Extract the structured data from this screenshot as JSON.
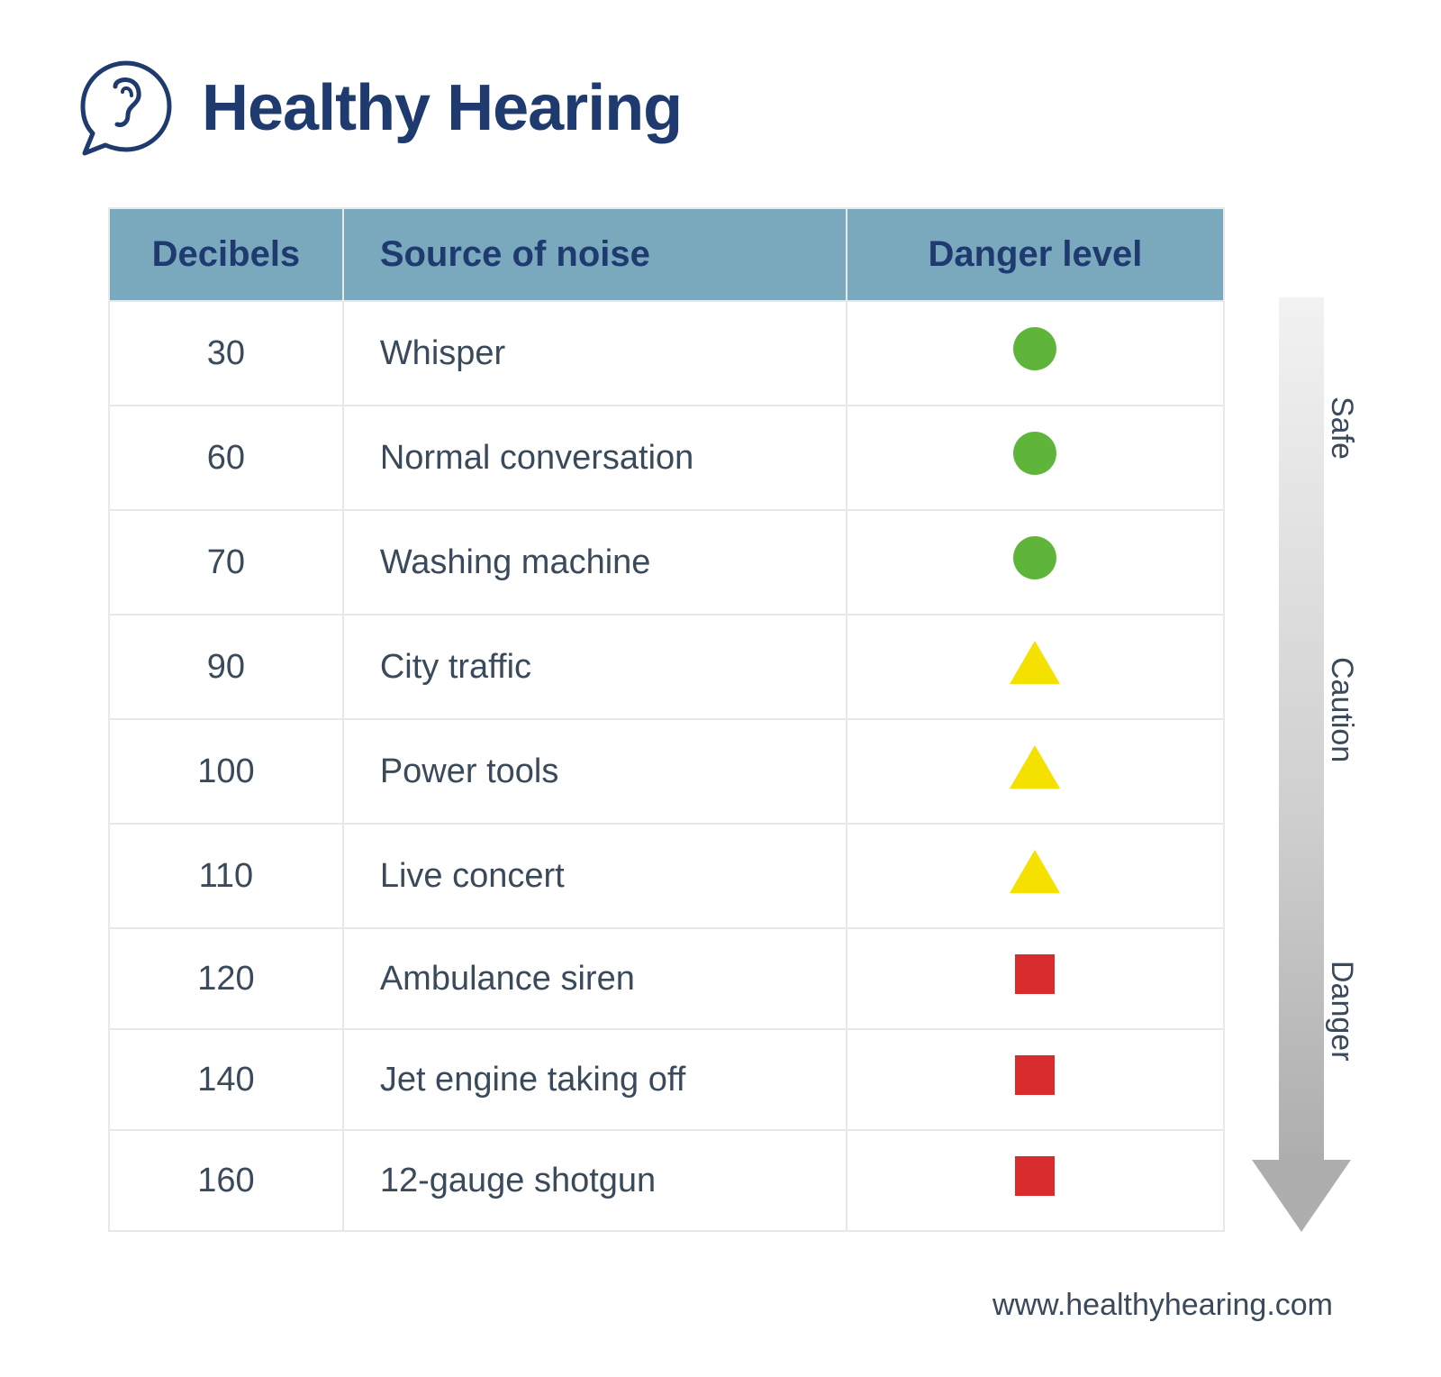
{
  "brand": {
    "title": "Healthy Hearing",
    "logo_stroke": "#1e3a6e"
  },
  "table": {
    "header_bg": "#7aa9be",
    "header_text_color": "#1e3a6e",
    "border_color": "#e8e8e8",
    "cell_text_color": "#3a4a5a",
    "columns": {
      "decibels": "Decibels",
      "source": "Source of noise",
      "danger": "Danger level"
    },
    "rows": [
      {
        "db": "30",
        "source": "Whisper",
        "marker": "circle",
        "color": "#5fb53a"
      },
      {
        "db": "60",
        "source": "Normal conversation",
        "marker": "circle",
        "color": "#5fb53a"
      },
      {
        "db": "70",
        "source": "Washing machine",
        "marker": "circle",
        "color": "#5fb53a"
      },
      {
        "db": "90",
        "source": "City traffic",
        "marker": "triangle",
        "color": "#f5e100"
      },
      {
        "db": "100",
        "source": "Power tools",
        "marker": "triangle",
        "color": "#f5e100"
      },
      {
        "db": "110",
        "source": "Live concert",
        "marker": "triangle",
        "color": "#f5e100"
      },
      {
        "db": "120",
        "source": "Ambulance siren",
        "marker": "square",
        "color": "#d92c2c"
      },
      {
        "db": "140",
        "source": "Jet engine taking off",
        "marker": "square",
        "color": "#d92c2c"
      },
      {
        "db": "160",
        "source": "12-gauge shotgun",
        "marker": "square",
        "color": "#d92c2c"
      }
    ]
  },
  "scale": {
    "labels": [
      "Safe",
      "Caution",
      "Danger"
    ],
    "arrow_gradient_top": "#f2f2f2",
    "arrow_gradient_bottom": "#aeaeae",
    "label_color": "#3a4a5a"
  },
  "footer": {
    "url": "www.healthyhearing.com"
  }
}
